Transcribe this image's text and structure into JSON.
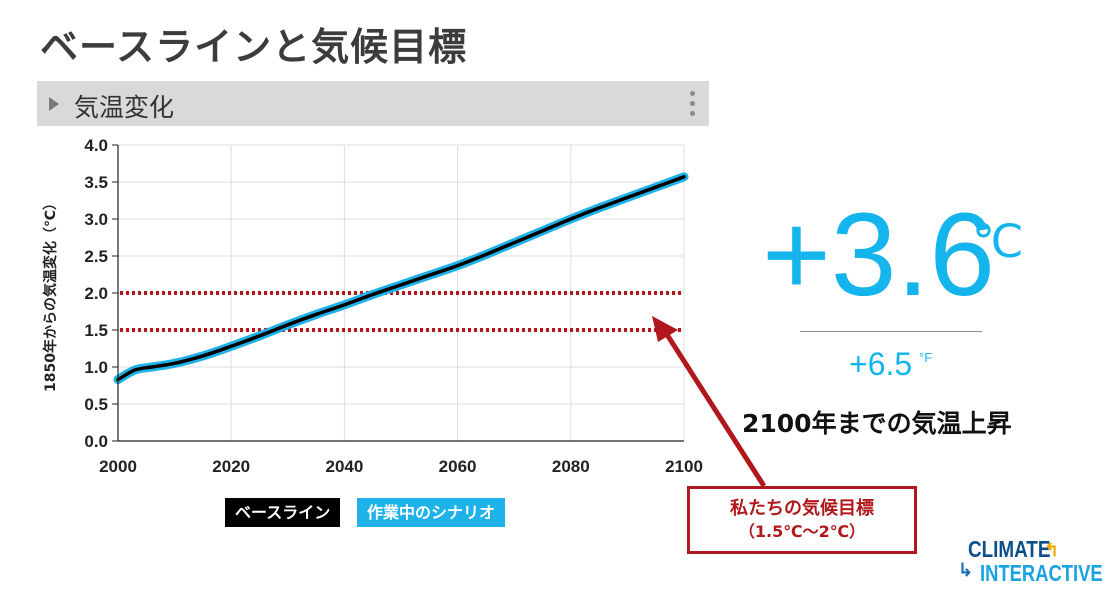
{
  "slide": {
    "title": "ベースラインと気候目標"
  },
  "panel": {
    "title": "気温変化",
    "menu_icon": "vertical-ellipsis-icon",
    "expand_icon": "triangle-right-icon"
  },
  "chart_data": {
    "type": "line",
    "ylabel": "1850年からの気温変化（℃）",
    "xlabel": "",
    "xlim": [
      2000,
      2100
    ],
    "ylim": [
      0.0,
      4.0
    ],
    "xticks": [
      "2000",
      "2020",
      "2040",
      "2060",
      "2080",
      "2100"
    ],
    "yticks": [
      "0.0",
      "0.5",
      "1.0",
      "1.5",
      "2.0",
      "2.5",
      "3.0",
      "3.5",
      "4.0"
    ],
    "grid": true,
    "x": [
      2000,
      2003,
      2006,
      2010,
      2015,
      2020,
      2025,
      2030,
      2035,
      2040,
      2045,
      2050,
      2055,
      2060,
      2065,
      2070,
      2075,
      2080,
      2085,
      2090,
      2095,
      2100
    ],
    "series": [
      {
        "name": "ベースライン",
        "color": "#000000",
        "values": [
          0.83,
          0.96,
          1.0,
          1.05,
          1.15,
          1.28,
          1.42,
          1.57,
          1.71,
          1.84,
          1.98,
          2.11,
          2.24,
          2.37,
          2.52,
          2.68,
          2.84,
          3.0,
          3.15,
          3.29,
          3.43,
          3.57
        ]
      },
      {
        "name": "作業中のシナリオ",
        "color": "#1fb2e8",
        "values": [
          0.83,
          0.96,
          1.0,
          1.05,
          1.15,
          1.28,
          1.42,
          1.57,
          1.71,
          1.84,
          1.98,
          2.11,
          2.24,
          2.37,
          2.52,
          2.68,
          2.84,
          3.0,
          3.15,
          3.29,
          3.43,
          3.57
        ]
      }
    ],
    "reference_lines": [
      {
        "y": 1.5,
        "color": "#b0181c",
        "style": "dotted"
      },
      {
        "y": 2.0,
        "color": "#b0181c",
        "style": "dotted"
      }
    ],
    "legend": {
      "placement": "bottom",
      "items": [
        "ベースライン",
        "作業中のシナリオ"
      ]
    }
  },
  "result": {
    "temp_c": "+3.6",
    "unit_c": "℃",
    "temp_f": "+6.5",
    "unit_f": "°F",
    "caption": "2100年までの気温上昇"
  },
  "annotation": {
    "line1": "私たちの気候目標",
    "line2": "（1.5℃～2℃）",
    "color": "#b0181c"
  },
  "logo": {
    "line1": "CLIMATE",
    "line2": "INTERACTIVE"
  },
  "colors": {
    "accent": "#14b4ec",
    "goal": "#b0181c",
    "panel": "#d9d9d9"
  }
}
